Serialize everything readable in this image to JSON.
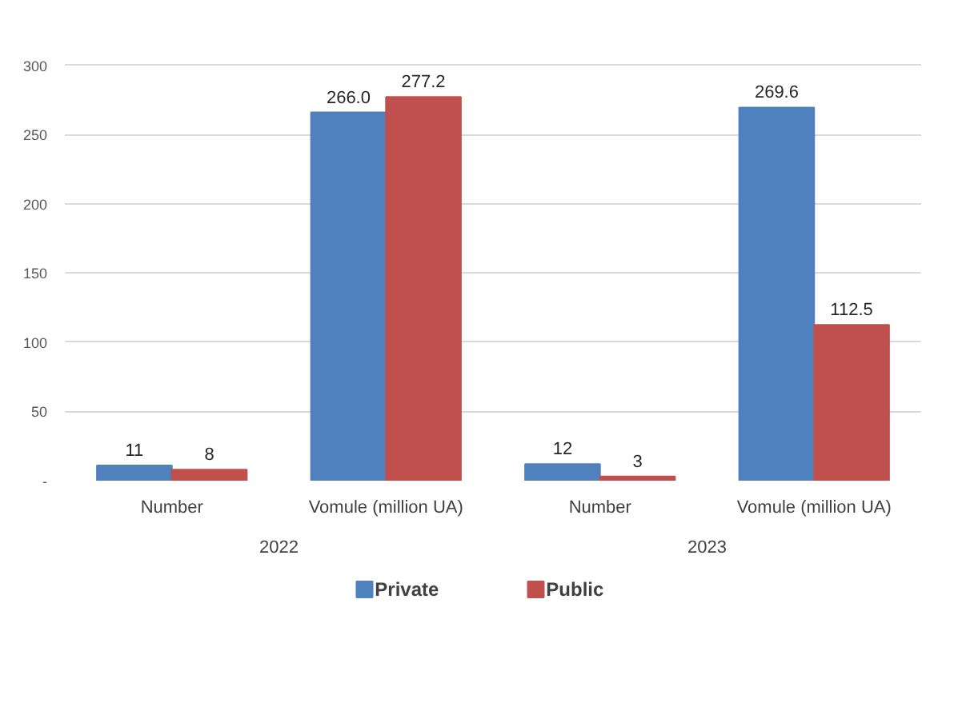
{
  "chart_data": {
    "type": "bar",
    "categories": [
      "Number",
      "Vomule (million UA)",
      "Number",
      "Vomule (million UA)"
    ],
    "series": [
      {
        "name": "Private",
        "color": "#4f81bd",
        "values": [
          11,
          266.0,
          12,
          269.6
        ],
        "value_labels": [
          "11",
          "266.0",
          "12",
          "269.6"
        ]
      },
      {
        "name": "Public",
        "color": "#c0504d",
        "values": [
          8,
          277.2,
          3,
          112.5
        ],
        "value_labels": [
          "8",
          "277.2",
          "3",
          "112.5"
        ]
      }
    ],
    "annotations": [
      "2022",
      "2023"
    ],
    "ylim": [
      0,
      300
    ],
    "yticks": [
      {
        "value": 0,
        "label": "-"
      },
      50,
      100,
      150,
      200,
      250,
      300
    ],
    "grid": "y",
    "legend": "bottom"
  }
}
